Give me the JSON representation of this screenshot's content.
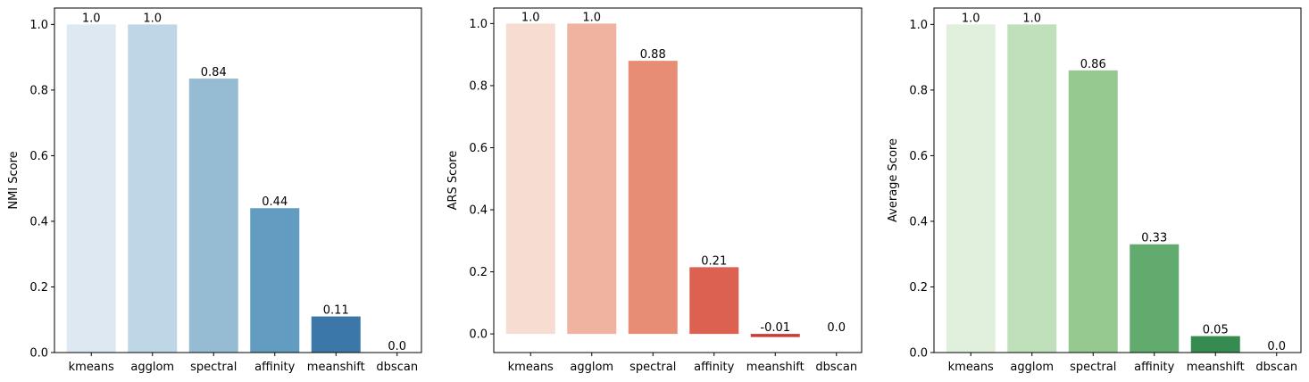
{
  "chart_data": [
    {
      "type": "bar",
      "categories": [
        "kmeans",
        "agglom",
        "spectral",
        "affinity",
        "meanshift",
        "dbscan"
      ],
      "values": [
        1.0,
        1.0,
        0.835,
        0.44,
        0.11,
        0.0
      ],
      "data_labels": [
        "1.0",
        "1.0",
        "0.84",
        "0.44",
        "0.11",
        "0.0"
      ],
      "ylabel": "NMI Score",
      "xlabel": "",
      "ylim": [
        0,
        1.05
      ],
      "yticks": [
        0.0,
        0.2,
        0.4,
        0.6,
        0.8,
        1.0
      ],
      "ytick_labels": [
        "0.0",
        "0.2",
        "0.4",
        "0.6",
        "0.8",
        "1.0"
      ],
      "colors": [
        "#dee8f3",
        "#bfd6e7",
        "#96bcd4",
        "#629cc1",
        "#3b78a9",
        "#1f5b94"
      ],
      "grid": false,
      "legend": "none"
    },
    {
      "type": "bar",
      "categories": [
        "kmeans",
        "agglom",
        "spectral",
        "affinity",
        "meanshift",
        "dbscan"
      ],
      "values": [
        1.0,
        1.0,
        0.88,
        0.215,
        -0.01,
        0.0
      ],
      "data_labels": [
        "1.0",
        "1.0",
        "0.88",
        "0.21",
        "-0.01",
        "0.0"
      ],
      "ylabel": "ARS Score",
      "xlabel": "",
      "ylim": [
        -0.06,
        1.05
      ],
      "yticks": [
        0.0,
        0.2,
        0.4,
        0.6,
        0.8,
        1.0
      ],
      "ytick_labels": [
        "0.0",
        "0.2",
        "0.4",
        "0.6",
        "0.8",
        "1.0"
      ],
      "colors": [
        "#f7dcd2",
        "#f0b39f",
        "#e78c75",
        "#dd6151",
        "#c73c33",
        "#a11f1e"
      ],
      "grid": false,
      "legend": "none"
    },
    {
      "type": "bar",
      "categories": [
        "kmeans",
        "agglom",
        "spectral",
        "affinity",
        "meanshift",
        "dbscan"
      ],
      "values": [
        1.0,
        1.0,
        0.86,
        0.33,
        0.05,
        0.0
      ],
      "data_labels": [
        "1.0",
        "1.0",
        "0.86",
        "0.33",
        "0.05",
        "0.0"
      ],
      "ylabel": "Average Score",
      "xlabel": "",
      "ylim": [
        0,
        1.05
      ],
      "yticks": [
        0.0,
        0.2,
        0.4,
        0.6,
        0.8,
        1.0
      ],
      "ytick_labels": [
        "0.0",
        "0.2",
        "0.4",
        "0.6",
        "0.8",
        "1.0"
      ],
      "colors": [
        "#e1efdd",
        "#c0dfbb",
        "#95c98f",
        "#62ab6e",
        "#368b50",
        "#1a6b35"
      ],
      "grid": false,
      "legend": "none"
    }
  ]
}
